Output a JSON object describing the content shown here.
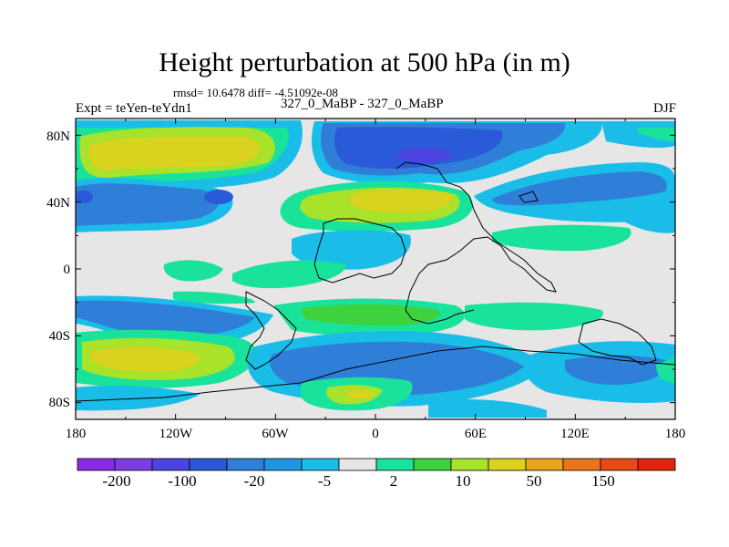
{
  "title": "Height perturbation at 500 hPa (in m)",
  "stats": "rmsd= 10.6478 diff= -4.51092e-08",
  "expt_label": "Expt = teYen-teYdn1",
  "run_label": "327_0_MaBP - 327_0_MaBP",
  "season": "DJF",
  "lat_ticks": [
    "80N",
    "40N",
    "0",
    "40S",
    "80S"
  ],
  "lon_ticks": [
    "180",
    "120W",
    "60W",
    "0",
    "60E",
    "120E",
    "180"
  ],
  "colorbar": {
    "colors": [
      "#8a2be2",
      "#7b3fe0",
      "#4b44e0",
      "#2a5ad8",
      "#2f7fd8",
      "#1e96e0",
      "#19bde8",
      "#e6e6e6",
      "#19e29a",
      "#3fd23f",
      "#a9e22a",
      "#d9d21e",
      "#e8a41c",
      "#e8741c",
      "#e84a14",
      "#e02410"
    ],
    "labels": [
      "-200",
      "-100",
      "-20",
      "-5",
      "2",
      "10",
      "50",
      "150"
    ]
  },
  "legend_colors": {
    "neg_strong": "#2a5ad8",
    "neg_mid": "#2f7fd8",
    "neg_weak": "#19bde8",
    "neutral": "#e6e6e6",
    "pos_weak": "#19e29a",
    "pos_mid": "#3fd23f",
    "pos_high": "#a9e22a",
    "pos_max": "#d9d21e"
  }
}
